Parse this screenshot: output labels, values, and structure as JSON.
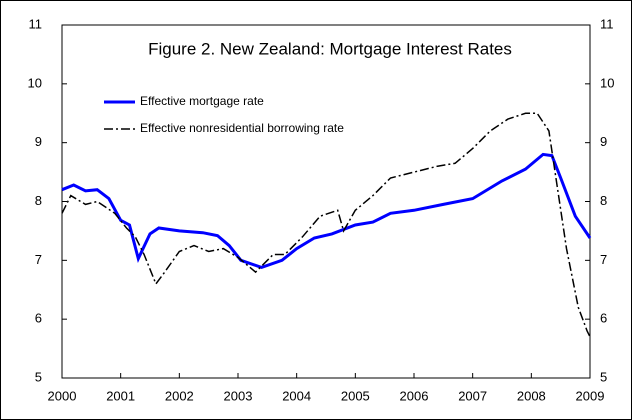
{
  "chart_data": {
    "type": "line",
    "title": "Figure 2. New Zealand: Mortgage Interest Rates",
    "xlim": [
      2000,
      2009
    ],
    "xticks": [
      2000,
      2001,
      2002,
      2003,
      2004,
      2005,
      2006,
      2007,
      2008,
      2009
    ],
    "ylim": [
      5,
      11
    ],
    "yticks": [
      5,
      6,
      7,
      8,
      9,
      10,
      11
    ],
    "y2lim": [
      5,
      11
    ],
    "y2ticks": [
      5,
      6,
      7,
      8,
      9,
      10,
      11
    ],
    "legend": "upper left",
    "series": [
      {
        "name": "Effective mortgage rate",
        "color": "#0000ff",
        "style": "solid",
        "x": [
          2000,
          2000.2,
          2000.4,
          2000.6,
          2000.8,
          2001,
          2001.15,
          2001.3,
          2001.5,
          2001.65,
          2002,
          2002.4,
          2002.65,
          2002.85,
          2003.05,
          2003.4,
          2003.75,
          2004,
          2004.3,
          2004.6,
          2005,
          2005.3,
          2005.6,
          2006,
          2006.5,
          2007,
          2007.5,
          2007.9,
          2008.2,
          2008.35,
          2008.5,
          2008.75,
          2009
        ],
        "values": [
          8.2,
          8.28,
          8.18,
          8.2,
          8.05,
          7.68,
          7.6,
          7.03,
          7.45,
          7.55,
          7.5,
          7.47,
          7.42,
          7.25,
          7.0,
          6.88,
          7.0,
          7.2,
          7.38,
          7.45,
          7.6,
          7.65,
          7.8,
          7.85,
          7.95,
          8.05,
          8.35,
          8.55,
          8.8,
          8.78,
          8.4,
          7.75,
          7.38
        ]
      },
      {
        "name": "Effective nonresidential borrowing rate",
        "color": "#000000",
        "style": "dashdot",
        "x": [
          2000,
          2000.15,
          2000.4,
          2000.6,
          2000.9,
          2001.1,
          2001.25,
          2001.4,
          2001.6,
          2001.75,
          2002,
          2002.25,
          2002.5,
          2002.75,
          2003,
          2003.3,
          2003.6,
          2003.8,
          2004.1,
          2004.4,
          2004.7,
          2004.8,
          2005,
          2005.3,
          2005.6,
          2006,
          2006.4,
          2006.7,
          2007,
          2007.3,
          2007.6,
          2007.9,
          2008.1,
          2008.3,
          2008.45,
          2008.6,
          2008.8,
          2008.95,
          2009
        ],
        "values": [
          7.8,
          8.1,
          7.95,
          8.0,
          7.8,
          7.55,
          7.4,
          7.1,
          6.6,
          6.8,
          7.15,
          7.25,
          7.15,
          7.2,
          7.05,
          6.8,
          7.1,
          7.1,
          7.4,
          7.75,
          7.85,
          7.5,
          7.85,
          8.1,
          8.4,
          8.5,
          8.6,
          8.65,
          8.9,
          9.2,
          9.4,
          9.5,
          9.5,
          9.2,
          8.2,
          7.2,
          6.2,
          5.8,
          5.7
        ]
      }
    ]
  }
}
